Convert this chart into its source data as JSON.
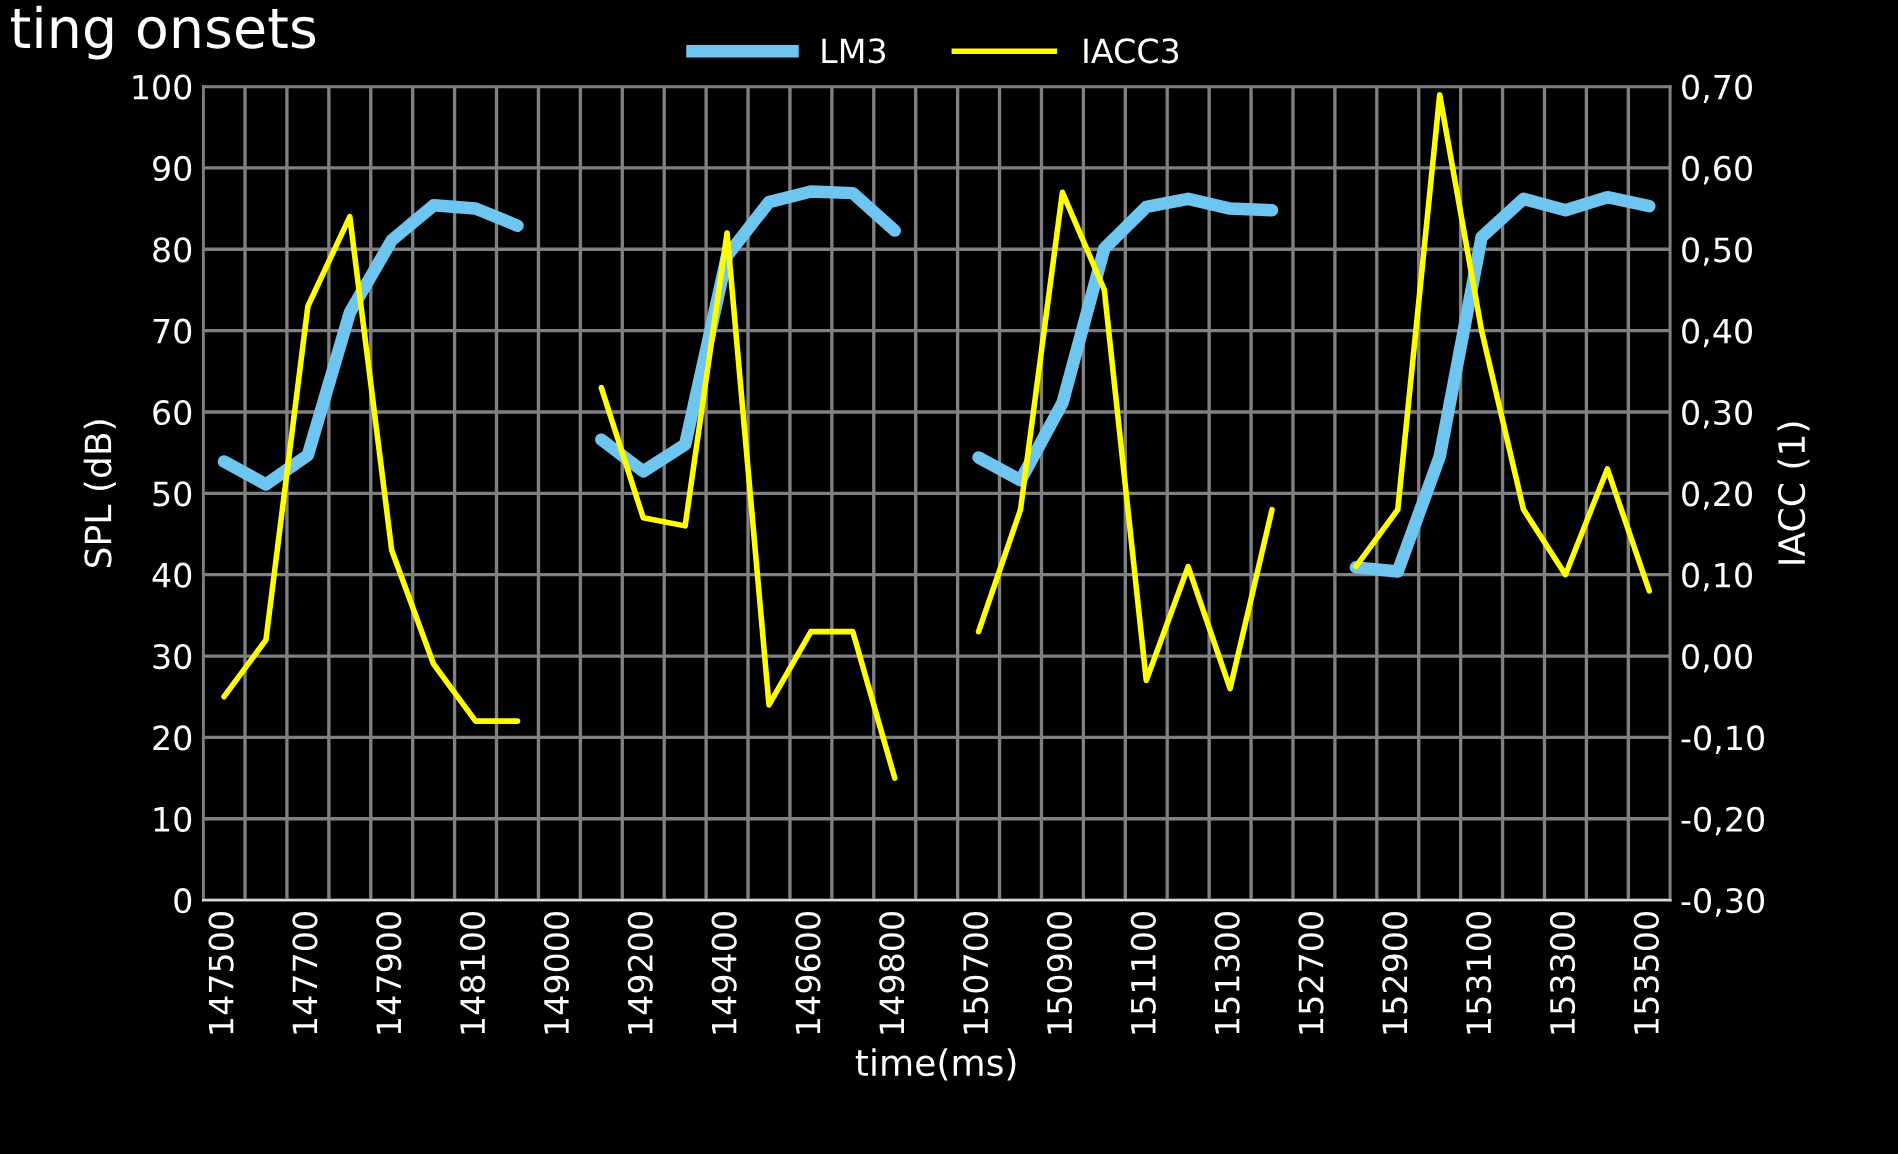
{
  "chart_data": {
    "type": "line",
    "title": "ting onsets",
    "xlabel": "time(ms)",
    "ylabel": "SPL (dB)",
    "y2label": "IACC (1)",
    "categories": [
      "147500",
      null,
      "147700",
      null,
      "147900",
      null,
      "148100",
      null,
      "149000",
      null,
      "149200",
      null,
      "149400",
      null,
      "149600",
      null,
      "149800",
      null,
      "150700",
      null,
      "150900",
      null,
      "151100",
      null,
      "151300",
      null,
      "152700",
      null,
      "152900",
      null,
      "153100",
      null,
      "153300",
      null,
      "153500"
    ],
    "series": [
      {
        "name": "LM3",
        "color": "#6ec6f0",
        "values": [
          53.9,
          51.1,
          54.7,
          72.2,
          81.1,
          85.4,
          85.0,
          82.9,
          null,
          56.6,
          52.7,
          56.0,
          79.2,
          85.8,
          87.1,
          86.9,
          82.3,
          null,
          54.4,
          51.6,
          61.1,
          80.1,
          85.2,
          86.2,
          85.0,
          84.8,
          null,
          40.9,
          40.4,
          54.5,
          81.5,
          86.2,
          84.8,
          86.4,
          85.3
        ]
      },
      {
        "name": "IACC3",
        "color": "#ffff00",
        "axis": "y2",
        "values": [
          -0.05,
          0.02,
          0.43,
          0.54,
          0.13,
          -0.01,
          -0.08,
          -0.08,
          null,
          0.33,
          0.17,
          0.16,
          0.52,
          -0.06,
          0.03,
          0.03,
          -0.15,
          null,
          0.03,
          0.18,
          0.57,
          0.45,
          -0.03,
          0.11,
          -0.04,
          0.18,
          null,
          0.11,
          0.18,
          0.69,
          0.4,
          0.18,
          0.1,
          0.23,
          0.08
        ]
      }
    ],
    "ylim": [
      0,
      100
    ],
    "yticks": [
      0,
      10,
      20,
      30,
      40,
      50,
      60,
      70,
      80,
      90,
      100
    ],
    "y2lim": [
      -0.3,
      0.7
    ],
    "y2ticks": [
      {
        "value": -0.3,
        "label": "-0,30"
      },
      {
        "value": -0.2,
        "label": "-0,20"
      },
      {
        "value": -0.1,
        "label": "-0,10"
      },
      {
        "value": 0.0,
        "label": "0,00"
      },
      {
        "value": 0.1,
        "label": "0,10"
      },
      {
        "value": 0.2,
        "label": "0,20"
      },
      {
        "value": 0.3,
        "label": "0,30"
      },
      {
        "value": 0.4,
        "label": "0,40"
      },
      {
        "value": 0.5,
        "label": "0,50"
      },
      {
        "value": 0.6,
        "label": "0,60"
      },
      {
        "value": 0.7,
        "label": "0,70"
      }
    ],
    "grid": true,
    "legend": "top",
    "marker": "none",
    "line_style": "solid"
  }
}
